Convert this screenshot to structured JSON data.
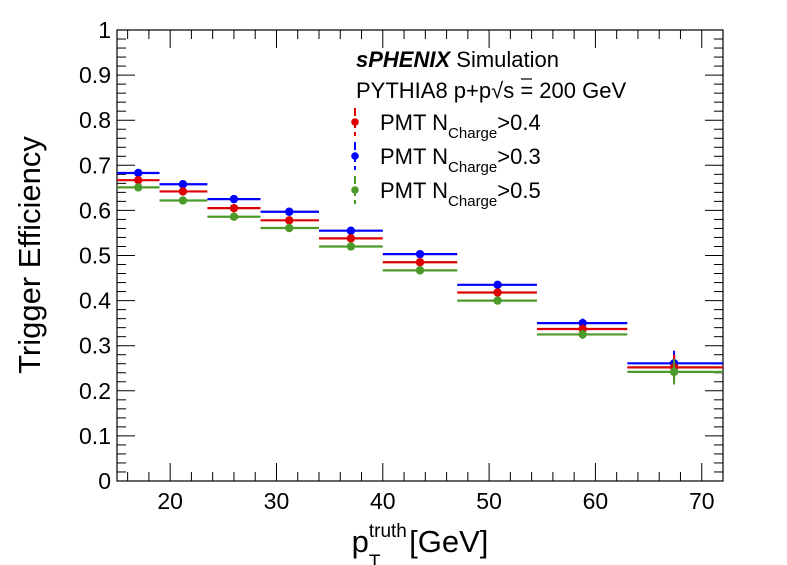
{
  "chart_data": {
    "type": "scatter",
    "xlabel": {
      "main": "p",
      "sup": "truth",
      "sub": "T",
      "unit": " [GeV]"
    },
    "ylabel": "Trigger Efficiency",
    "xlim": [
      15,
      72
    ],
    "ylim": [
      0,
      1
    ],
    "xticks": [
      20,
      30,
      40,
      50,
      60,
      70
    ],
    "yticks": [
      0,
      0.1,
      0.2,
      0.3,
      0.4,
      0.5,
      0.6,
      0.7,
      0.8,
      0.9,
      1
    ],
    "ytick_labels": [
      "0",
      "0.1",
      "0.2",
      "0.3",
      "0.4",
      "0.5",
      "0.6",
      "0.7",
      "0.8",
      "0.9",
      "1"
    ],
    "bins": [
      [
        15,
        19
      ],
      [
        19,
        23.5
      ],
      [
        23.5,
        28.5
      ],
      [
        28.5,
        34
      ],
      [
        34,
        40
      ],
      [
        40,
        47
      ],
      [
        47,
        54.5
      ],
      [
        54.5,
        63
      ],
      [
        63,
        72
      ]
    ],
    "x": [
      17,
      21.2,
      26,
      31.2,
      37,
      43.5,
      50.8,
      58.8,
      67.4
    ],
    "series": [
      {
        "name": "PMT N_{Charge}>0.3",
        "color": "#0000ff",
        "values": [
          0.683,
          0.658,
          0.625,
          0.597,
          0.555,
          0.503,
          0.435,
          0.35,
          0.261
        ],
        "yerr": [
          0.005,
          0.005,
          0.005,
          0.005,
          0.006,
          0.006,
          0.008,
          0.01,
          0.028
        ]
      },
      {
        "name": "PMT N_{Charge}>0.4",
        "color": "#dd0000",
        "values": [
          0.667,
          0.642,
          0.605,
          0.578,
          0.538,
          0.485,
          0.418,
          0.337,
          0.252
        ],
        "yerr": [
          0.005,
          0.005,
          0.005,
          0.005,
          0.006,
          0.006,
          0.008,
          0.01,
          0.028
        ]
      },
      {
        "name": "PMT N_{Charge}>0.5",
        "color": "#4c9a2a",
        "values": [
          0.651,
          0.622,
          0.586,
          0.561,
          0.52,
          0.467,
          0.4,
          0.325,
          0.242
        ],
        "yerr": [
          0.005,
          0.005,
          0.005,
          0.005,
          0.006,
          0.006,
          0.008,
          0.01,
          0.028
        ]
      }
    ],
    "legend": {
      "header_brand": "sPHENIX",
      "header_suffix": " Simulation",
      "subheader": "PYTHIA8 p+p",
      "energy": "s = 200 GeV",
      "entries": [
        {
          "prefix": "PMT N",
          "sub": "Charge",
          "suffix": ">0.4",
          "color": "#dd0000"
        },
        {
          "prefix": "PMT N",
          "sub": "Charge",
          "suffix": ">0.3",
          "color": "#0000ff"
        },
        {
          "prefix": "PMT N",
          "sub": "Charge",
          "suffix": ">0.5",
          "color": "#4c9a2a"
        }
      ]
    },
    "grid": false
  }
}
